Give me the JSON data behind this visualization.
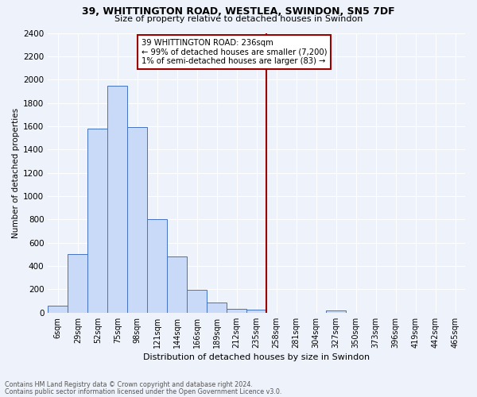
{
  "title1": "39, WHITTINGTON ROAD, WESTLEA, SWINDON, SN5 7DF",
  "title2": "Size of property relative to detached houses in Swindon",
  "xlabel": "Distribution of detached houses by size in Swindon",
  "ylabel": "Number of detached properties",
  "bar_labels": [
    "6sqm",
    "29sqm",
    "52sqm",
    "75sqm",
    "98sqm",
    "121sqm",
    "144sqm",
    "166sqm",
    "189sqm",
    "212sqm",
    "235sqm",
    "258sqm",
    "281sqm",
    "304sqm",
    "327sqm",
    "350sqm",
    "373sqm",
    "396sqm",
    "419sqm",
    "442sqm",
    "465sqm"
  ],
  "bar_values": [
    60,
    500,
    1580,
    1950,
    1590,
    800,
    480,
    195,
    90,
    35,
    25,
    0,
    0,
    0,
    20,
    0,
    0,
    0,
    0,
    0,
    0
  ],
  "bar_color": "#c9daf8",
  "bar_edge_color": "#4472c4",
  "property_line_x": 10.5,
  "property_line_color": "#990000",
  "annotation_title": "39 WHITTINGTON ROAD: 236sqm",
  "annotation_line1": "← 99% of detached houses are smaller (7,200)",
  "annotation_line2": "1% of semi-detached houses are larger (83) →",
  "annotation_box_color": "#990000",
  "ylim": [
    0,
    2400
  ],
  "yticks": [
    0,
    200,
    400,
    600,
    800,
    1000,
    1200,
    1400,
    1600,
    1800,
    2000,
    2200,
    2400
  ],
  "footnote1": "Contains HM Land Registry data © Crown copyright and database right 2024.",
  "footnote2": "Contains public sector information licensed under the Open Government Licence v3.0.",
  "background_color": "#eef2fa",
  "grid_color": "#ffffff"
}
